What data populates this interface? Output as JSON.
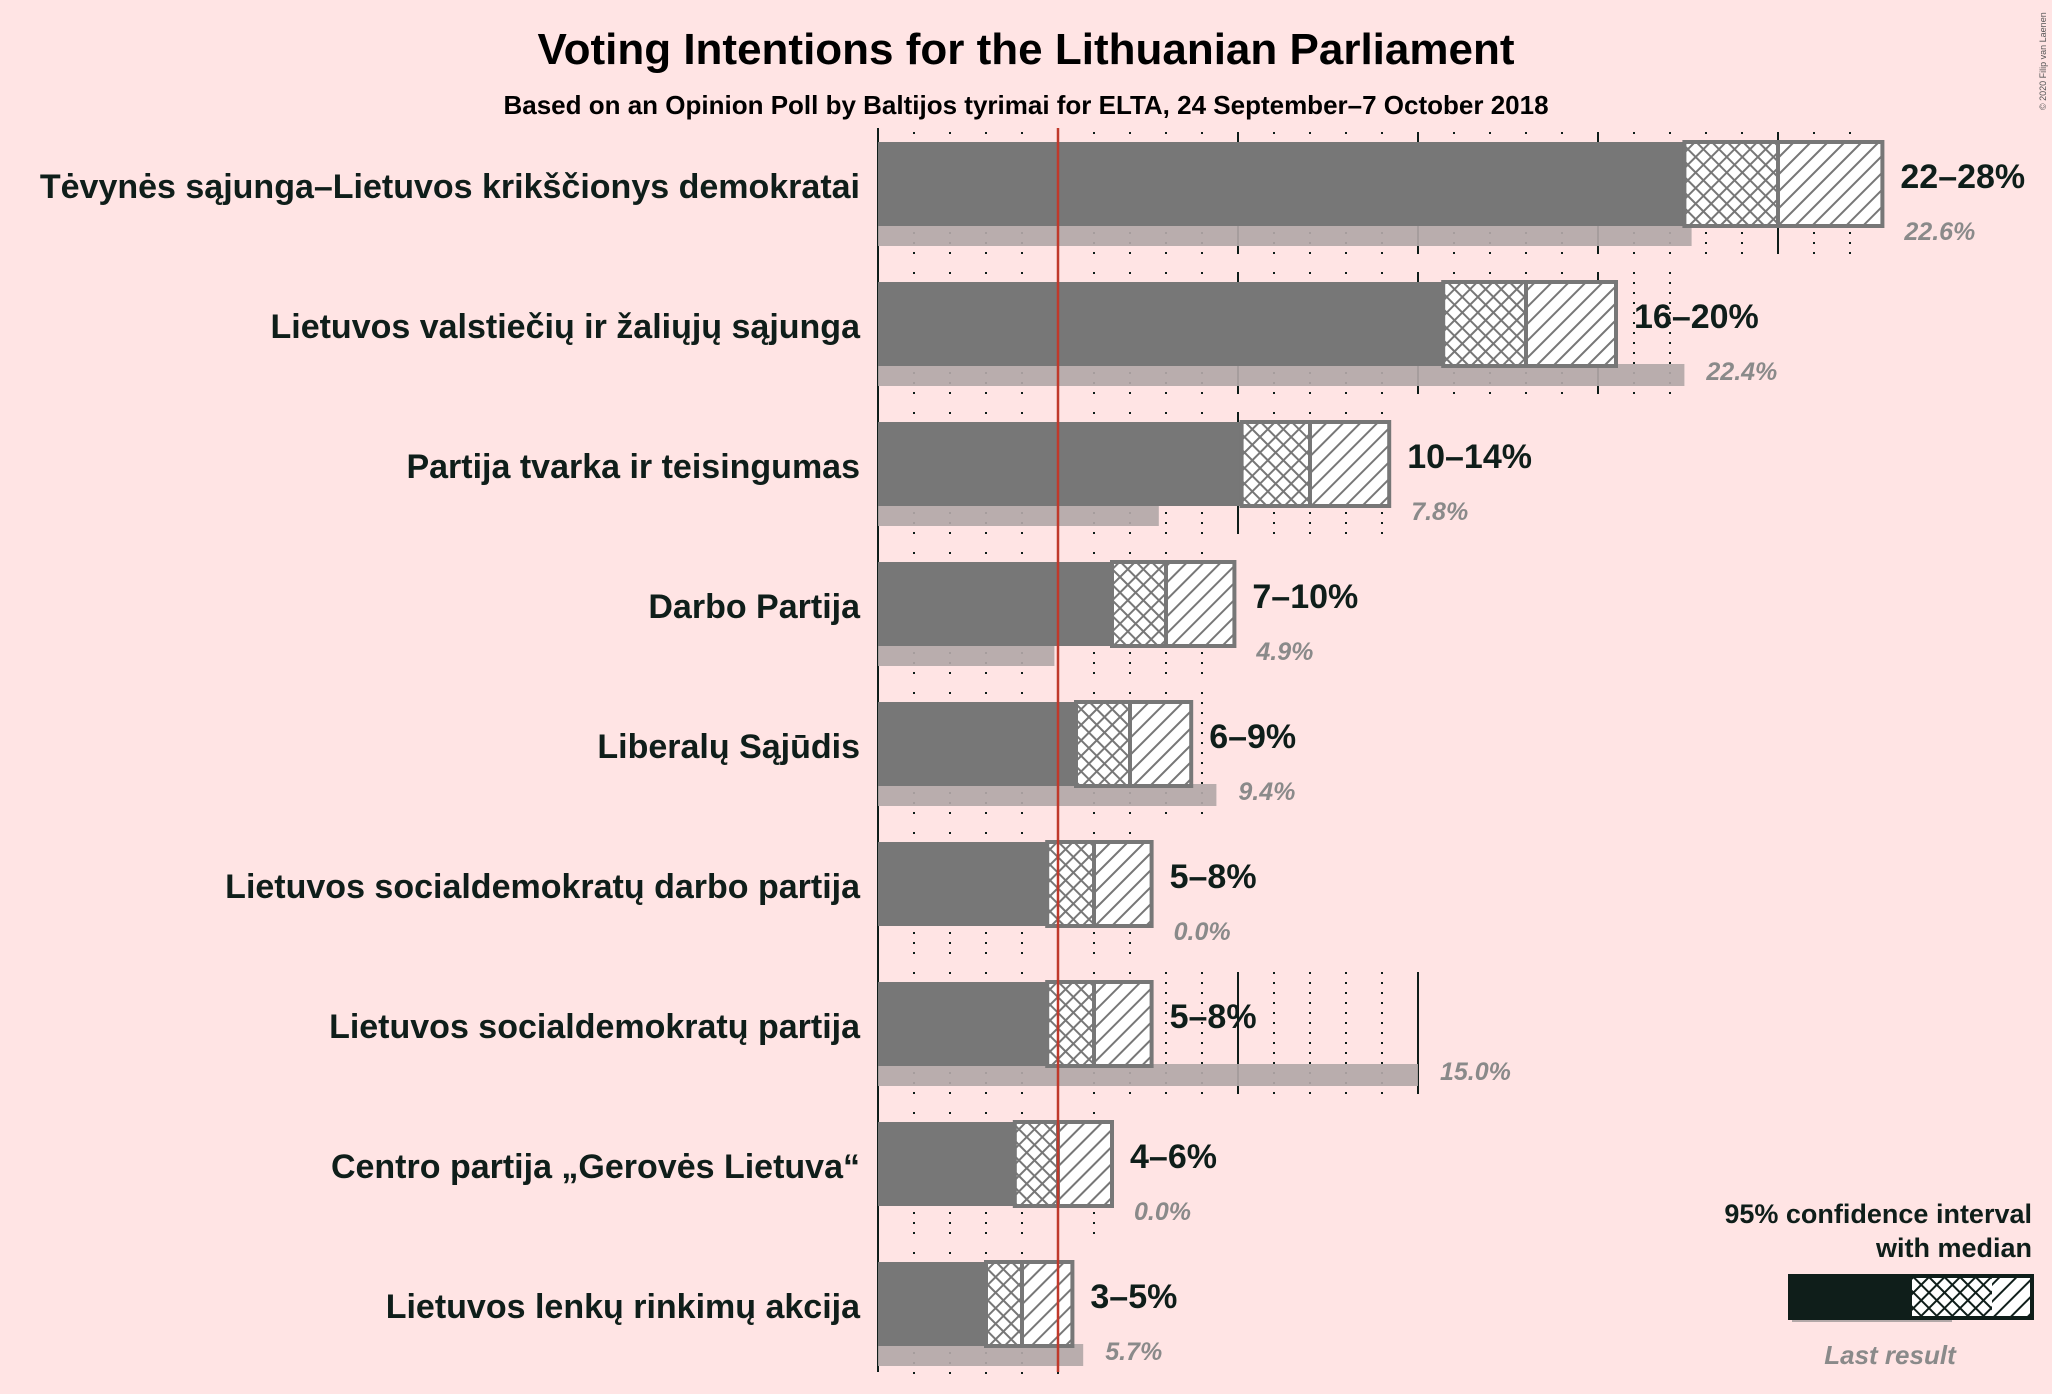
{
  "title": "Voting Intentions for the Lithuanian Parliament",
  "subtitle": "Based on an Opinion Poll by Baltijos tyrimai for ELTA, 24 September–7 October 2018",
  "copyright": "© 2020 Filip van Laenen",
  "legend": {
    "ci_label_line1": "95% confidence interval",
    "ci_label_line2": "with median",
    "last_result_label": "Last result"
  },
  "colors": {
    "background": "#ffe4e4",
    "bar": "#777777",
    "last_result": "#b3a8a8",
    "threshold": "#c0392b",
    "legend_dark": "#0f1e1a"
  },
  "chart_data": {
    "type": "bar",
    "orientation": "horizontal",
    "threshold": 5,
    "xlim": [
      0,
      28
    ],
    "parties": [
      {
        "name": "Tėvynės sąjunga–Lietuvos krikščionys demokratai",
        "ci_low": 22.4,
        "median": 25,
        "ci_high": 27.9,
        "range_label": "22–28%",
        "last": 22.6,
        "last_label": "22.6%"
      },
      {
        "name": "Lietuvos valstiečių ir žaliųjų sąjunga",
        "ci_low": 15.7,
        "median": 18,
        "ci_high": 20.5,
        "range_label": "16–20%",
        "last": 22.4,
        "last_label": "22.4%"
      },
      {
        "name": "Partija tvarka ir teisingumas",
        "ci_low": 10.1,
        "median": 12,
        "ci_high": 14.2,
        "range_label": "10–14%",
        "last": 7.8,
        "last_label": "7.8%"
      },
      {
        "name": "Darbo Partija",
        "ci_low": 6.5,
        "median": 8,
        "ci_high": 9.9,
        "range_label": "7–10%",
        "last": 4.9,
        "last_label": "4.9%"
      },
      {
        "name": "Liberalų Sąjūdis",
        "ci_low": 5.5,
        "median": 7,
        "ci_high": 8.7,
        "range_label": "6–9%",
        "last": 9.4,
        "last_label": "9.4%"
      },
      {
        "name": "Lietuvos socialdemokratų darbo partija",
        "ci_low": 4.7,
        "median": 6,
        "ci_high": 7.6,
        "range_label": "5–8%",
        "last": 0.0,
        "last_label": "0.0%"
      },
      {
        "name": "Lietuvos socialdemokratų partija",
        "ci_low": 4.7,
        "median": 6,
        "ci_high": 7.6,
        "range_label": "5–8%",
        "last": 15.0,
        "last_label": "15.0%"
      },
      {
        "name": "Centro partija „Gerovės Lietuva“",
        "ci_low": 3.8,
        "median": 5,
        "ci_high": 6.5,
        "range_label": "4–6%",
        "last": 0.0,
        "last_label": "0.0%"
      },
      {
        "name": "Lietuvos lenkų rinkimų akcija",
        "ci_low": 3.0,
        "median": 4,
        "ci_high": 5.4,
        "range_label": "3–5%",
        "last": 5.7,
        "last_label": "5.7%"
      }
    ]
  }
}
